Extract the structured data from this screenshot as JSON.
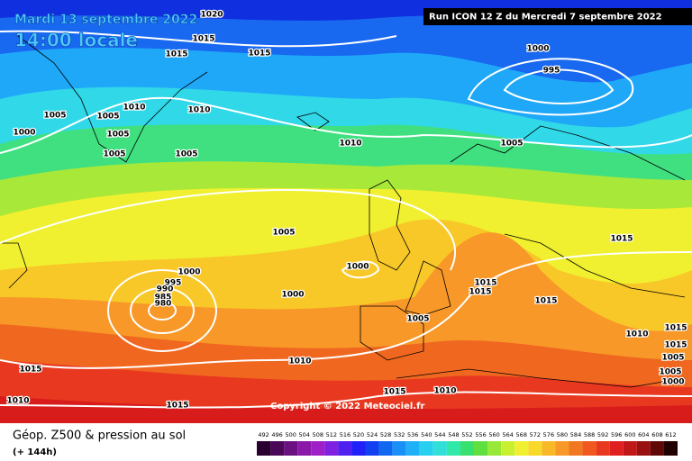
{
  "header": {
    "date": "Mardi 13 septembre 2022",
    "time": "14:00 locale",
    "run": "Run ICON 12 Z du Mercredi 7 septembre 2022",
    "copyright": "Copyright © 2022 Meteociel.fr"
  },
  "isobars": [
    {
      "label": "1020"
    },
    {
      "label": "1015"
    },
    {
      "label": "1015"
    },
    {
      "label": "1015"
    },
    {
      "label": "1000"
    },
    {
      "label": "995"
    },
    {
      "label": "1005"
    },
    {
      "label": "1005"
    },
    {
      "label": "1010"
    },
    {
      "label": "1010"
    },
    {
      "label": "1005"
    },
    {
      "label": "1000"
    },
    {
      "label": "1005"
    },
    {
      "label": "1005"
    },
    {
      "label": "1010"
    },
    {
      "label": "1005"
    },
    {
      "label": "1005"
    },
    {
      "label": "1015"
    },
    {
      "label": "1000"
    },
    {
      "label": "995"
    },
    {
      "label": "1000"
    },
    {
      "label": "990"
    },
    {
      "label": "985"
    },
    {
      "label": "980"
    },
    {
      "label": "1000"
    },
    {
      "label": "1015"
    },
    {
      "label": "1015"
    },
    {
      "label": "1015"
    },
    {
      "label": "1005"
    },
    {
      "label": "1010"
    },
    {
      "label": "1015"
    },
    {
      "label": "1015"
    },
    {
      "label": "1010"
    },
    {
      "label": "1015"
    },
    {
      "label": "1010"
    },
    {
      "label": "1015"
    },
    {
      "label": "1015"
    },
    {
      "label": "1010"
    },
    {
      "label": "1005"
    },
    {
      "label": "1005"
    },
    {
      "label": "1000"
    }
  ],
  "legend": {
    "title": "Géop. Z500 & pression au sol",
    "lead_time": "(+ 144h)",
    "scale": [
      {
        "label": "492",
        "color": "#2a0030"
      },
      {
        "label": "496",
        "color": "#4a0858"
      },
      {
        "label": "500",
        "color": "#6a1080"
      },
      {
        "label": "504",
        "color": "#8a18a8"
      },
      {
        "label": "508",
        "color": "#a020c8"
      },
      {
        "label": "512",
        "color": "#8020e0"
      },
      {
        "label": "516",
        "color": "#5020f0"
      },
      {
        "label": "520",
        "color": "#2020f8"
      },
      {
        "label": "524",
        "color": "#1040f0"
      },
      {
        "label": "528",
        "color": "#1068f0"
      },
      {
        "label": "532",
        "color": "#1890f8"
      },
      {
        "label": "536",
        "color": "#20b0f8"
      },
      {
        "label": "540",
        "color": "#28d0f0"
      },
      {
        "label": "544",
        "color": "#30e0d8"
      },
      {
        "label": "548",
        "color": "#30e8a8"
      },
      {
        "label": "552",
        "color": "#38e070"
      },
      {
        "label": "556",
        "color": "#60e040"
      },
      {
        "label": "560",
        "color": "#98e838"
      },
      {
        "label": "564",
        "color": "#c8f030"
      },
      {
        "label": "568",
        "color": "#f0f030"
      },
      {
        "label": "572",
        "color": "#f8d828"
      },
      {
        "label": "576",
        "color": "#f8b828"
      },
      {
        "label": "580",
        "color": "#f89828"
      },
      {
        "label": "584",
        "color": "#f07820"
      },
      {
        "label": "588",
        "color": "#f05820"
      },
      {
        "label": "592",
        "color": "#e83820"
      },
      {
        "label": "596",
        "color": "#e02020"
      },
      {
        "label": "600",
        "color": "#c01818"
      },
      {
        "label": "604",
        "color": "#981010"
      },
      {
        "label": "608",
        "color": "#600808"
      },
      {
        "label": "612",
        "color": "#200000"
      }
    ]
  }
}
